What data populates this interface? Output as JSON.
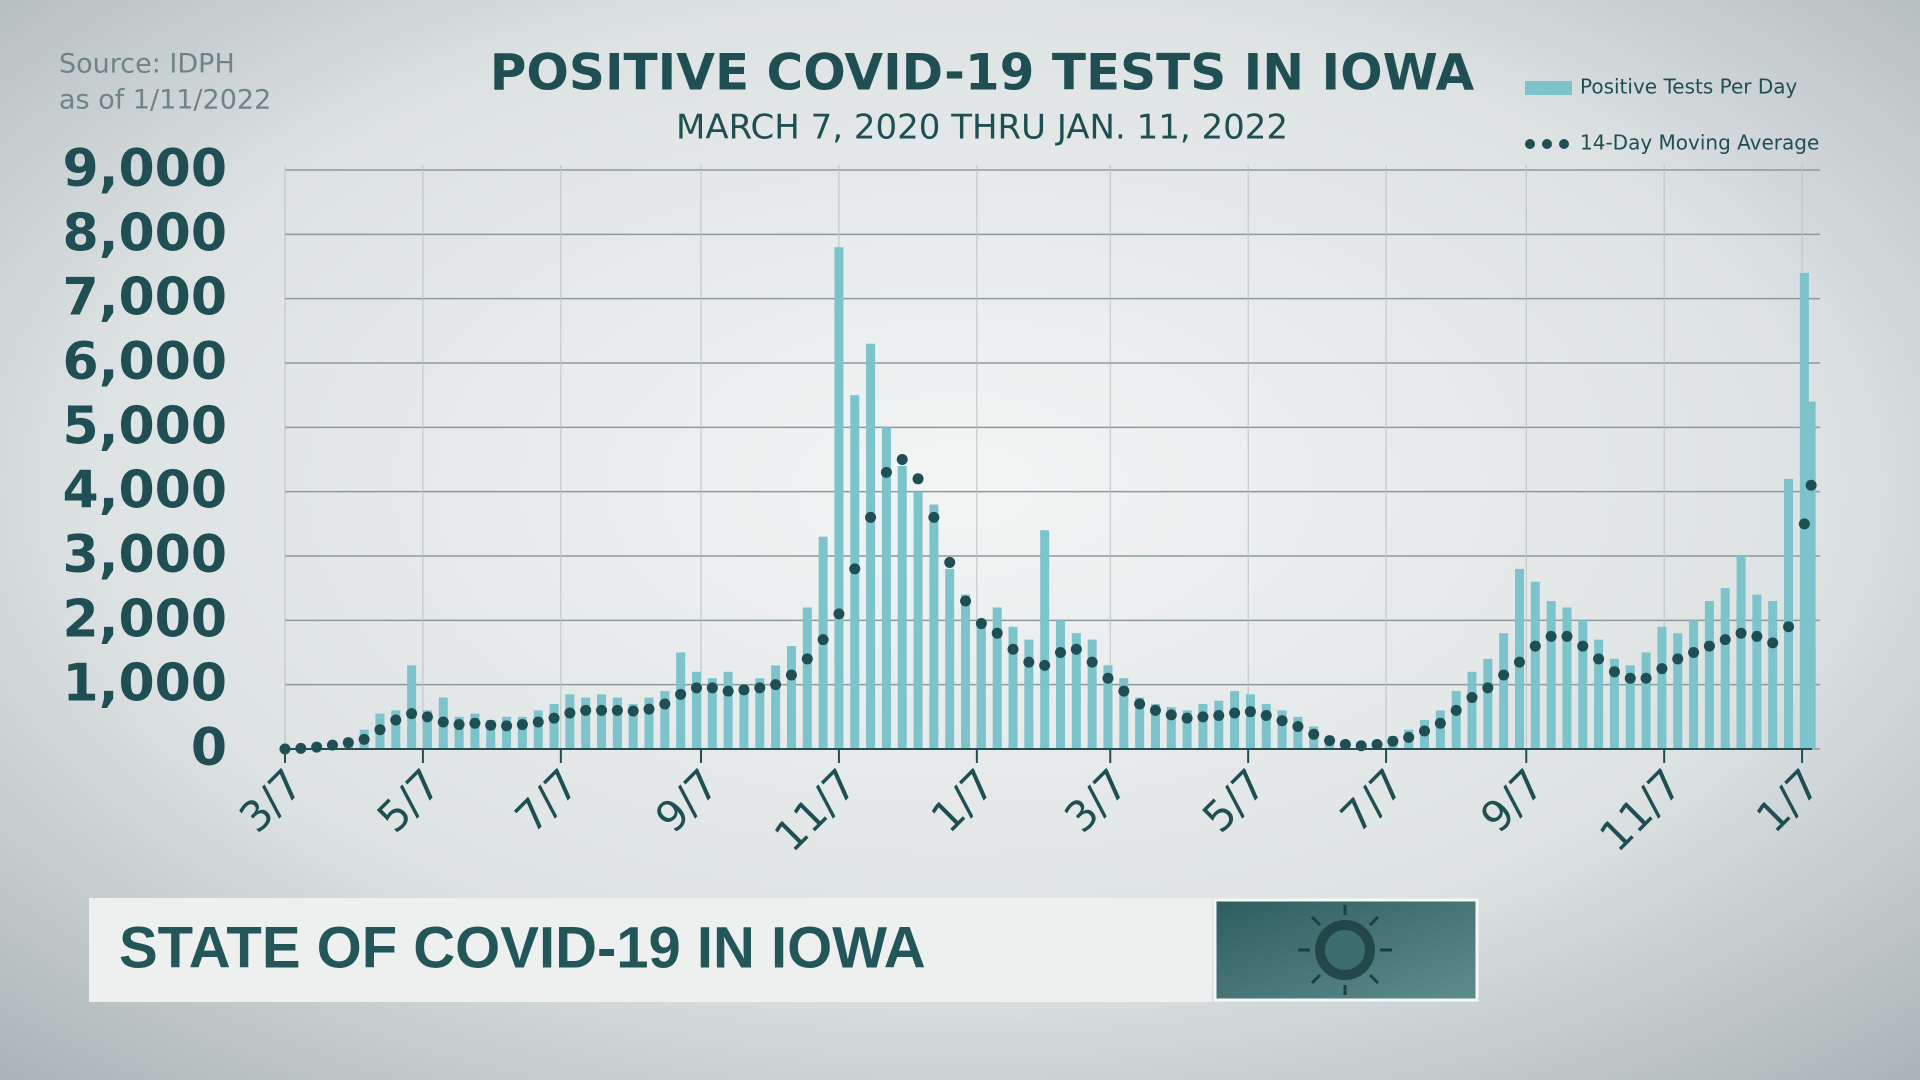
{
  "chart_data": {
    "type": "bar",
    "title": "POSITIVE COVID-19 TESTS IN IOWA",
    "subtitle": "MARCH 7, 2020  THRU JAN. 11, 2022",
    "source": "Source: IDPH",
    "as_of": "as of 1/11/2022",
    "x": [
      0,
      7,
      14,
      21,
      28,
      35,
      42,
      49,
      56,
      63,
      70,
      77,
      84,
      91,
      98,
      105,
      112,
      119,
      126,
      133,
      140,
      147,
      154,
      161,
      168,
      175,
      182,
      189,
      196,
      203,
      210,
      217,
      224,
      231,
      238,
      245,
      252,
      259,
      266,
      273,
      280,
      287,
      294,
      301,
      308,
      315,
      322,
      329,
      336,
      343,
      350,
      357,
      364,
      371,
      378,
      385,
      392,
      399,
      406,
      413,
      420,
      427,
      434,
      441,
      448,
      455,
      462,
      469,
      476,
      483,
      490,
      497,
      504,
      511,
      518,
      525,
      532,
      539,
      546,
      553,
      560,
      567,
      574,
      581,
      588,
      595,
      602,
      609,
      616,
      623,
      630,
      637,
      644,
      651,
      658,
      665,
      672,
      675
    ],
    "series": [
      {
        "name": "Positive Tests Per Day",
        "type": "bar",
        "color": "#7cc3cb",
        "values": [
          0,
          20,
          40,
          80,
          120,
          300,
          550,
          600,
          1300,
          600,
          800,
          500,
          550,
          450,
          500,
          500,
          600,
          700,
          850,
          800,
          850,
          800,
          700,
          800,
          900,
          1500,
          1200,
          1100,
          1200,
          1000,
          1100,
          1300,
          1600,
          2200,
          3300,
          7800,
          5500,
          6300,
          5000,
          4400,
          4000,
          3800,
          2800,
          2400,
          2000,
          2200,
          1900,
          1700,
          3400,
          2000,
          1800,
          1700,
          1300,
          1100,
          800,
          700,
          650,
          600,
          700,
          750,
          900,
          850,
          700,
          600,
          500,
          350,
          200,
          120,
          80,
          120,
          200,
          300,
          450,
          600,
          900,
          1200,
          1400,
          1800,
          2800,
          2600,
          2300,
          2200,
          2000,
          1700,
          1400,
          1300,
          1500,
          1900,
          1800,
          2000,
          2300,
          2500,
          3000,
          2400,
          2300,
          4200,
          7400,
          5400
        ]
      },
      {
        "name": "14-Day Moving Average",
        "type": "dot",
        "color": "#1f4f53",
        "values": [
          0,
          10,
          30,
          60,
          100,
          150,
          300,
          450,
          550,
          500,
          420,
          380,
          400,
          370,
          360,
          380,
          420,
          480,
          560,
          600,
          600,
          600,
          590,
          620,
          700,
          850,
          950,
          950,
          900,
          920,
          950,
          1000,
          1150,
          1400,
          1700,
          2100,
          2800,
          3600,
          4300,
          4500,
          4200,
          3600,
          2900,
          2300,
          1950,
          1800,
          1550,
          1350,
          1300,
          1500,
          1550,
          1350,
          1100,
          900,
          700,
          600,
          530,
          480,
          500,
          520,
          560,
          580,
          520,
          440,
          350,
          230,
          130,
          70,
          50,
          70,
          120,
          180,
          280,
          400,
          600,
          800,
          950,
          1150,
          1350,
          1600,
          1750,
          1750,
          1600,
          1400,
          1200,
          1100,
          1100,
          1250,
          1400,
          1500,
          1600,
          1700,
          1800,
          1750,
          1650,
          1900,
          3500,
          4100
        ]
      }
    ],
    "xlim": [
      0,
      676
    ],
    "xticks": [
      {
        "value": 0,
        "label": "3/7"
      },
      {
        "value": 61,
        "label": "5/7"
      },
      {
        "value": 122,
        "label": "7/7"
      },
      {
        "value": 184,
        "label": "9/7"
      },
      {
        "value": 245,
        "label": "11/7"
      },
      {
        "value": 306,
        "label": "1/7"
      },
      {
        "value": 365,
        "label": "3/7"
      },
      {
        "value": 426,
        "label": "5/7"
      },
      {
        "value": 487,
        "label": "7/7"
      },
      {
        "value": 549,
        "label": "9/7"
      },
      {
        "value": 610,
        "label": "11/7"
      },
      {
        "value": 671,
        "label": "1/7"
      }
    ],
    "ylim": [
      0,
      9000
    ],
    "yticks": [
      0,
      {
        "value": 1000,
        "label": "1,000"
      },
      {
        "value": 2000,
        "label": "2,000"
      },
      {
        "value": 3000,
        "label": "3,000"
      },
      {
        "value": 4000,
        "label": "4,000"
      },
      {
        "value": 5000,
        "label": "5,000"
      },
      {
        "value": 6000,
        "label": "6,000"
      },
      {
        "value": 7000,
        "label": "7,000"
      },
      {
        "value": 8000,
        "label": "8,000"
      },
      {
        "value": 9000,
        "label": "9,000"
      }
    ],
    "grid": true
  },
  "lower_third": {
    "title": "STATE OF COVID-19 IN IOWA"
  }
}
